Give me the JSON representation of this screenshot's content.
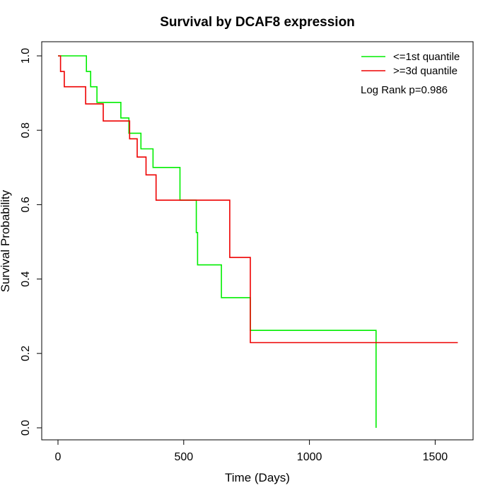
{
  "chart_data": {
    "type": "line",
    "step": true,
    "title": "Survival by DCAF8 expression",
    "xlabel": "Time (Days)",
    "ylabel": "Survival Probability",
    "xlim": [
      0,
      1650
    ],
    "ylim": [
      0,
      1
    ],
    "x_ticks": [
      0,
      500,
      1000,
      1500
    ],
    "y_ticks": [
      0.0,
      0.2,
      0.4,
      0.6,
      0.8,
      1.0
    ],
    "x_tick_labels": [
      "0",
      "500",
      "1000",
      "1500"
    ],
    "y_tick_labels": [
      "0.0",
      "0.2",
      "0.4",
      "0.6",
      "0.8",
      "1.0"
    ],
    "grid": false,
    "legend_position": "top-right",
    "annotation": "Log Rank p=0.986",
    "series": [
      {
        "name": "<=1st quantile",
        "color": "#00ee00",
        "points": [
          [
            0,
            1.0
          ],
          [
            113,
            0.958
          ],
          [
            130,
            0.917
          ],
          [
            155,
            0.875
          ],
          [
            250,
            0.833
          ],
          [
            282,
            0.792
          ],
          [
            330,
            0.75
          ],
          [
            378,
            0.7
          ],
          [
            485,
            0.612
          ],
          [
            550,
            0.525
          ],
          [
            555,
            0.438
          ],
          [
            650,
            0.35
          ],
          [
            765,
            0.262
          ],
          [
            1265,
            0.0
          ]
        ]
      },
      {
        "name": ">=3d quantile",
        "color": "#ee0000",
        "points": [
          [
            0,
            1.0
          ],
          [
            10,
            0.958
          ],
          [
            25,
            0.917
          ],
          [
            110,
            0.871
          ],
          [
            180,
            0.825
          ],
          [
            285,
            0.777
          ],
          [
            315,
            0.728
          ],
          [
            350,
            0.68
          ],
          [
            390,
            0.612
          ],
          [
            683,
            0.458
          ],
          [
            765,
            0.229
          ],
          [
            1590,
            0.229
          ]
        ]
      }
    ]
  }
}
